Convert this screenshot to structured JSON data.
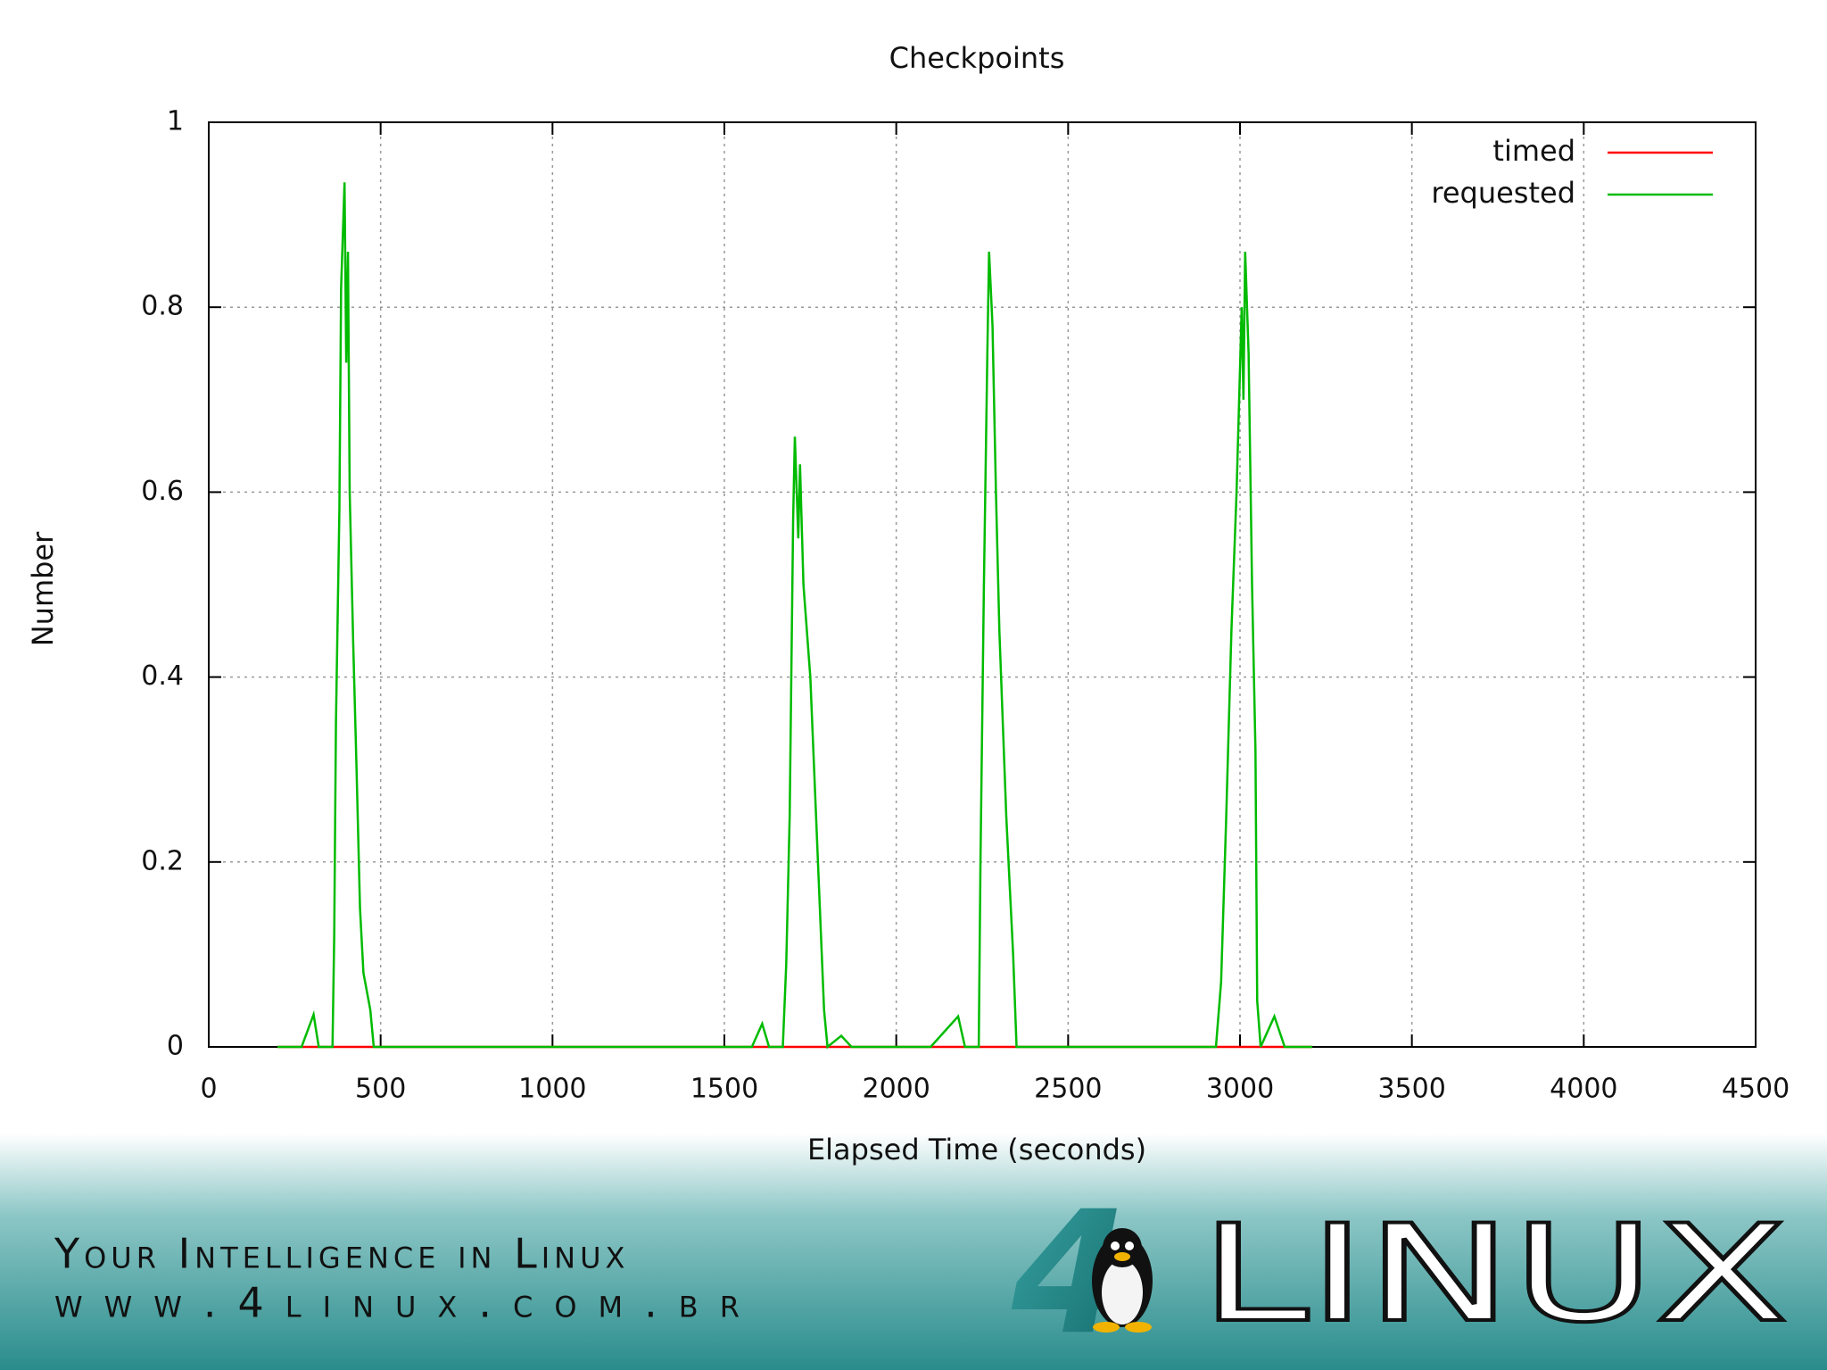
{
  "chart_data": {
    "type": "line",
    "title": "Checkpoints",
    "xlabel": "Elapsed Time (seconds)",
    "ylabel": "Number",
    "x": [
      200,
      270,
      305,
      320,
      360,
      365,
      370,
      380,
      385,
      395,
      400,
      405,
      410,
      420,
      430,
      440,
      450,
      470,
      480,
      1580,
      1610,
      1630,
      1670,
      1680,
      1690,
      1700,
      1705,
      1715,
      1720,
      1730,
      1750,
      1770,
      1790,
      1800,
      1840,
      1870,
      2100,
      2180,
      2200,
      2240,
      2245,
      2255,
      2265,
      2270,
      2280,
      2290,
      2300,
      2320,
      2340,
      2350,
      2930,
      2945,
      2960,
      2975,
      2990,
      3005,
      3010,
      3015,
      3025,
      3035,
      3045,
      3050,
      3060,
      3100,
      3130,
      3210
    ],
    "series": [
      {
        "name": "timed",
        "color": "#ff0000",
        "values": [
          0,
          0,
          0,
          0,
          0,
          0,
          0,
          0,
          0,
          0,
          0,
          0,
          0,
          0,
          0,
          0,
          0,
          0,
          0,
          0,
          0,
          0,
          0,
          0,
          0,
          0,
          0,
          0,
          0,
          0,
          0,
          0,
          0,
          0,
          0,
          0,
          0,
          0,
          0,
          0,
          0,
          0,
          0,
          0,
          0,
          0,
          0,
          0,
          0,
          0,
          0,
          0,
          0,
          0,
          0,
          0,
          0,
          0,
          0,
          0,
          0,
          0,
          0,
          0,
          0,
          0
        ]
      },
      {
        "name": "requested",
        "color": "#00bb00",
        "values": [
          0,
          0,
          0.035,
          0,
          0,
          0.12,
          0.35,
          0.58,
          0.82,
          0.935,
          0.74,
          0.86,
          0.6,
          0.44,
          0.3,
          0.15,
          0.08,
          0.04,
          0,
          0,
          0.025,
          0,
          0,
          0.09,
          0.25,
          0.57,
          0.66,
          0.55,
          0.63,
          0.5,
          0.4,
          0.22,
          0.04,
          0,
          0.012,
          0,
          0,
          0.033,
          0,
          0,
          0.2,
          0.5,
          0.75,
          0.86,
          0.78,
          0.6,
          0.45,
          0.25,
          0.1,
          0,
          0,
          0.07,
          0.25,
          0.45,
          0.6,
          0.8,
          0.7,
          0.86,
          0.75,
          0.5,
          0.32,
          0.05,
          0,
          0.033,
          0,
          0
        ]
      }
    ],
    "xlim": [
      0,
      4500
    ],
    "xticks": [
      0,
      500,
      1000,
      1500,
      2000,
      2500,
      3000,
      3500,
      4000,
      4500
    ],
    "ylim": [
      0,
      1
    ],
    "yticks": [
      0,
      0.2,
      0.4,
      0.6,
      0.8,
      1
    ],
    "grid": true,
    "legend": "top-right"
  },
  "footer": {
    "slogan": "Your Intelligence in Linux",
    "url": "www.4linux.com.br",
    "logo_number": "4",
    "logo_text": "LINUX"
  }
}
